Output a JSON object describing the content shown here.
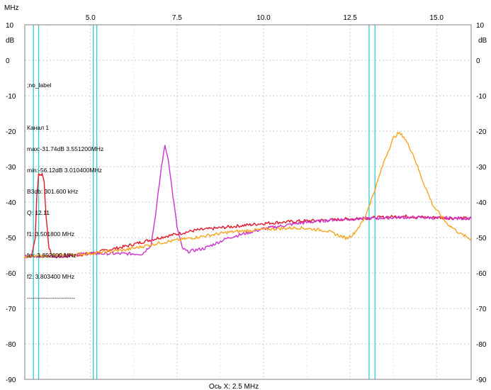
{
  "chart_data": {
    "type": "line",
    "x_unit_label": "MHz",
    "y_unit_label": "dB",
    "xlabel": "Ось X: 2.5 MHz",
    "xlim": [
      3.1,
      16.0
    ],
    "ylim": [
      -90,
      10
    ],
    "x_ticks": [
      "5.0",
      "7.5",
      "10.0",
      "12.5",
      "15.0"
    ],
    "x_tick_values": [
      5.0,
      7.5,
      10.0,
      12.5,
      15.0
    ],
    "y_ticks": [
      "10",
      "0",
      "-10",
      "-20",
      "-30",
      "-40",
      "-50",
      "-60",
      "-70",
      "-80",
      "-90"
    ],
    "y_tick_values": [
      10,
      0,
      -10,
      -20,
      -30,
      -40,
      -50,
      -60,
      -70,
      -80,
      -90
    ],
    "markers_x": [
      3.35,
      3.5,
      5.08,
      5.18,
      13.05,
      13.22
    ],
    "marker_color": "#33cccc",
    "grid": true,
    "series": [
      {
        "color": "#e0192b",
        "values": [
          [
            3.1,
            -55.5
          ],
          [
            3.3,
            -55.2
          ],
          [
            3.4,
            -50
          ],
          [
            3.45,
            -38
          ],
          [
            3.5,
            -32
          ],
          [
            3.56,
            -32.4
          ],
          [
            3.6,
            -32
          ],
          [
            3.66,
            -34
          ],
          [
            3.72,
            -45
          ],
          [
            3.8,
            -53
          ],
          [
            3.9,
            -55.5
          ],
          [
            4.3,
            -55.3
          ],
          [
            5,
            -54.5
          ],
          [
            6,
            -52.5
          ],
          [
            7,
            -50
          ],
          [
            8,
            -48
          ],
          [
            9,
            -47
          ],
          [
            10,
            -46
          ],
          [
            11,
            -45.4
          ],
          [
            12,
            -45
          ],
          [
            13,
            -44.5
          ],
          [
            14,
            -44
          ],
          [
            15,
            -44.4
          ],
          [
            16,
            -44.6
          ]
        ]
      },
      {
        "color": "#cc33cc",
        "values": [
          [
            3.1,
            -55.3
          ],
          [
            4,
            -55.2
          ],
          [
            5,
            -54.5
          ],
          [
            6.5,
            -54.6
          ],
          [
            6.75,
            -52
          ],
          [
            6.9,
            -42
          ],
          [
            7.05,
            -30
          ],
          [
            7.15,
            -24
          ],
          [
            7.25,
            -28
          ],
          [
            7.35,
            -36
          ],
          [
            7.5,
            -47
          ],
          [
            7.65,
            -53
          ],
          [
            7.8,
            -54
          ],
          [
            8.3,
            -53
          ],
          [
            9,
            -50
          ],
          [
            10,
            -47.5
          ],
          [
            11,
            -46
          ],
          [
            12,
            -45
          ],
          [
            13,
            -44.6
          ],
          [
            14,
            -44.3
          ],
          [
            16,
            -44.6
          ]
        ]
      },
      {
        "color": "#f5a623",
        "values": [
          [
            3.1,
            -55.5
          ],
          [
            4,
            -55
          ],
          [
            5,
            -54.5
          ],
          [
            6,
            -53.5
          ],
          [
            7,
            -51.5
          ],
          [
            8,
            -50
          ],
          [
            9,
            -48.5
          ],
          [
            10,
            -47.7
          ],
          [
            11,
            -47.2
          ],
          [
            11.8,
            -48
          ],
          [
            12.2,
            -49.5
          ],
          [
            12.4,
            -50.2
          ],
          [
            12.6,
            -49
          ],
          [
            12.9,
            -45
          ],
          [
            13.2,
            -37
          ],
          [
            13.5,
            -28
          ],
          [
            13.75,
            -22
          ],
          [
            13.9,
            -20.5
          ],
          [
            14.05,
            -21.5
          ],
          [
            14.3,
            -26
          ],
          [
            14.6,
            -34
          ],
          [
            14.9,
            -41
          ],
          [
            15.3,
            -46
          ],
          [
            15.7,
            -49
          ],
          [
            16,
            -50.5
          ]
        ]
      }
    ]
  },
  "info": {
    "lines": [
      ";no_label",
      "",
      "Канал 1",
      "max:-31.74dB 3.551200MHz",
      "min:-56.12dB 3.010400MHz",
      "B3db: 301.600 kHz",
      "Q: 12.11",
      "f1: 3.501800 MHz",
      "fm: 3.652600 MHz",
      "f2: 3.803400 MHz",
      "------------------------"
    ]
  }
}
